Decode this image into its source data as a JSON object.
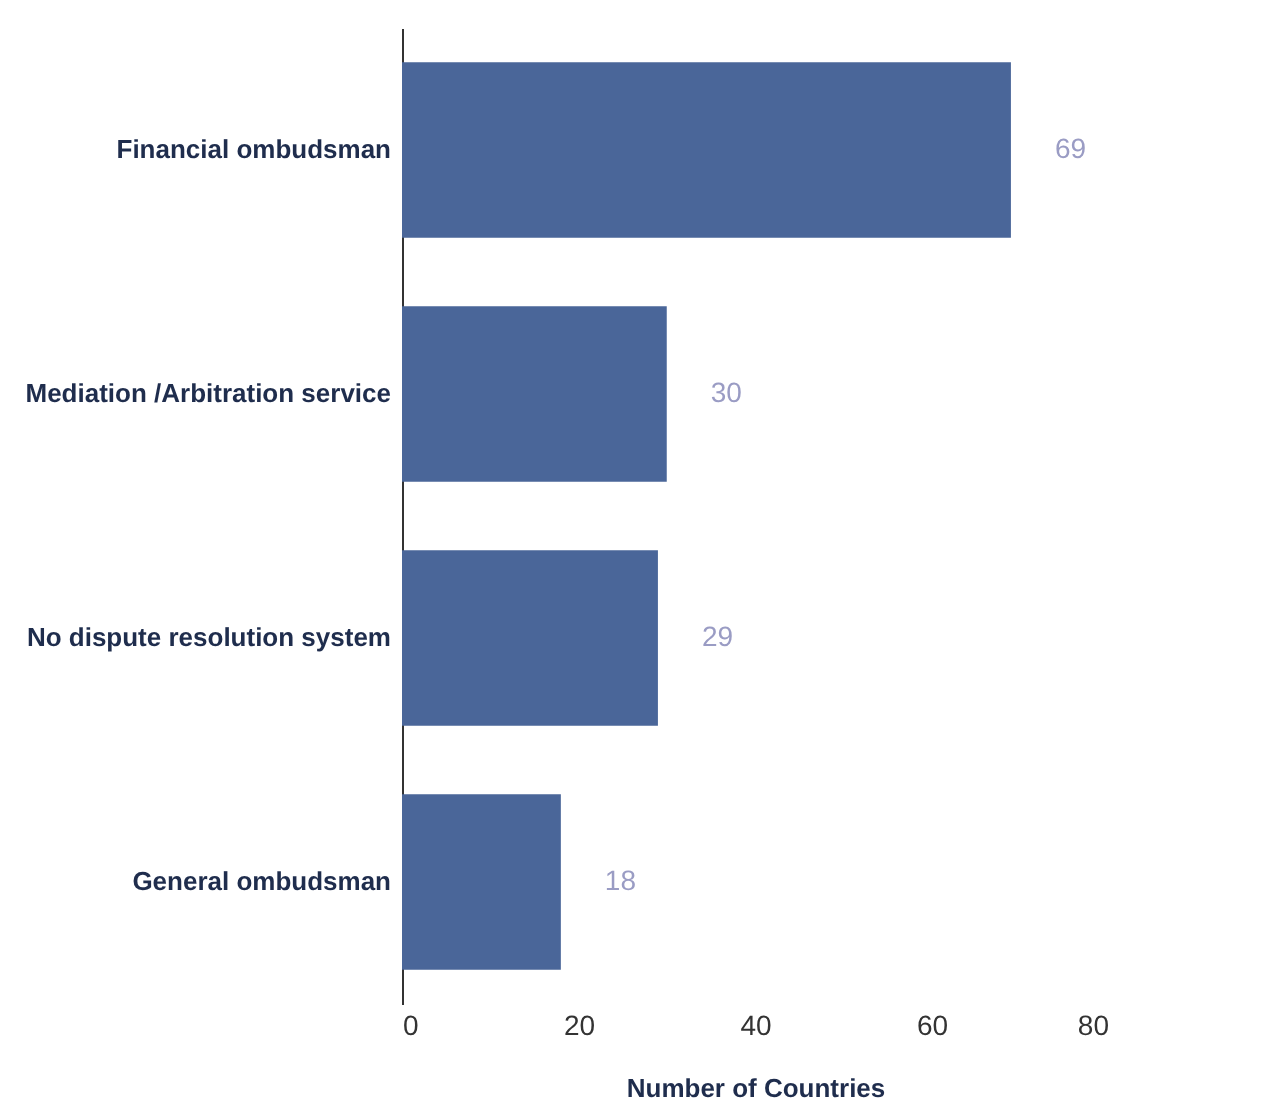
{
  "chart_data": {
    "type": "bar",
    "orientation": "horizontal",
    "categories": [
      "Financial ombudsman",
      "Mediation /Arbitration  service",
      "No dispute resolution system",
      "General ombudsman"
    ],
    "values": [
      69,
      30,
      29,
      18
    ],
    "color": "#4a6699",
    "xlabel": "Number of Countries",
    "xlim": [
      0,
      80
    ],
    "xticks": [
      0,
      20,
      40,
      60,
      80
    ],
    "data_labels": true,
    "grid": false
  }
}
